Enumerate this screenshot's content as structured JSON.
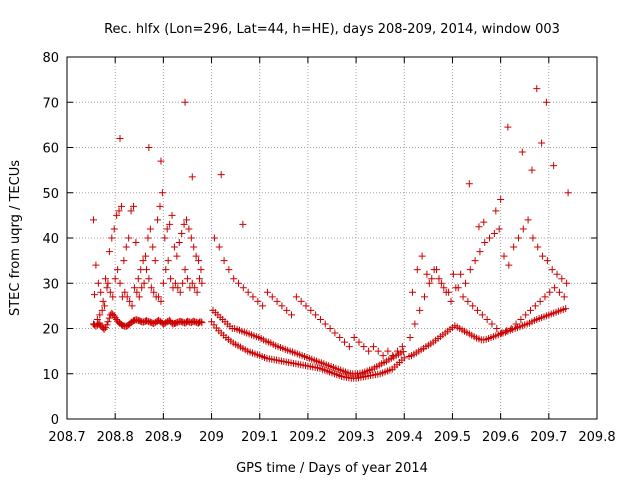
{
  "chart_data": {
    "type": "scatter",
    "title": "Rec. hlfx (Lon=296, Lat=44, h=HE), days 208-209, 2014, window 003",
    "xlabel": "GPS time / Days of year 2014",
    "ylabel": "STEC from uqrg / TECUs",
    "xlim": [
      208.7,
      209.8
    ],
    "ylim": [
      0,
      80
    ],
    "x_ticks": [
      208.7,
      208.8,
      208.9,
      209.0,
      209.1,
      209.2,
      209.3,
      209.4,
      209.5,
      209.6,
      209.7,
      209.8
    ],
    "x_tick_labels": [
      "208.7",
      "208.8",
      "208.9",
      "209",
      "209.1",
      "209.2",
      "209.3",
      "209.4",
      "209.5",
      "209.6",
      "209.7",
      "209.8"
    ],
    "y_ticks": [
      0,
      10,
      20,
      30,
      40,
      50,
      60,
      70,
      80
    ],
    "y_tick_labels": [
      "0",
      "10",
      "20",
      "30",
      "40",
      "50",
      "60",
      "70",
      "80"
    ],
    "grid": true,
    "marker": "+",
    "color": "#cc0000",
    "series": [
      {
        "name": "STEC",
        "x": [
          208.755,
          208.757,
          208.76,
          208.763,
          208.765,
          208.768,
          208.77,
          208.773,
          208.775,
          208.777,
          208.78,
          208.783,
          208.785,
          208.788,
          208.79,
          208.793,
          208.795,
          208.798,
          208.8,
          208.803,
          208.805,
          208.808,
          208.81,
          208.813,
          208.815,
          208.818,
          208.82,
          208.823,
          208.825,
          208.828,
          208.83,
          208.833,
          208.835,
          208.838,
          208.84,
          208.843,
          208.845,
          208.848,
          208.85,
          208.853,
          208.855,
          208.858,
          208.86,
          208.863,
          208.865,
          208.868,
          208.87,
          208.873,
          208.875,
          208.878,
          208.88,
          208.883,
          208.885,
          208.888,
          208.89,
          208.893,
          208.895,
          208.898,
          208.9,
          208.903,
          208.905,
          208.908,
          208.91,
          208.913,
          208.915,
          208.918,
          208.92,
          208.923,
          208.925,
          208.928,
          208.93,
          208.933,
          208.935,
          208.938,
          208.94,
          208.943,
          208.945,
          208.948,
          208.95,
          208.953,
          208.955,
          208.958,
          208.96,
          208.963,
          208.965,
          208.968,
          208.97,
          208.973,
          208.975,
          208.978,
          208.98,
          208.755,
          208.76,
          208.765,
          208.77,
          208.775,
          208.78,
          208.785,
          208.79,
          208.795,
          208.8,
          208.805,
          208.81,
          208.815,
          208.82,
          208.825,
          208.83,
          208.835,
          208.84,
          208.845,
          208.85,
          208.855,
          208.86,
          208.865,
          208.87,
          208.875,
          208.88,
          208.885,
          208.89,
          208.895,
          208.9,
          208.905,
          208.91,
          208.915,
          208.92,
          208.925,
          208.93,
          208.935,
          208.94,
          208.945,
          208.95,
          208.955,
          208.96,
          208.965,
          208.97,
          208.975,
          208.98,
          208.757,
          208.763,
          208.768,
          208.773,
          208.778,
          208.783,
          208.788,
          208.793,
          208.798,
          208.803,
          208.808,
          208.813,
          208.818,
          208.823,
          208.828,
          208.833,
          208.838,
          208.843,
          208.848,
          208.853,
          208.858,
          208.863,
          208.868,
          208.873,
          208.878,
          208.883,
          208.888,
          208.893,
          208.898,
          208.903,
          208.908,
          208.913,
          208.918,
          208.923,
          208.928,
          208.933,
          208.938,
          208.943,
          208.948,
          208.953,
          208.958,
          208.963,
          208.968,
          208.973,
          208.978,
          209.0,
          209.005,
          209.01,
          209.015,
          209.02,
          209.025,
          209.03,
          209.035,
          209.04,
          209.045,
          209.05,
          209.055,
          209.06,
          209.065,
          209.07,
          209.075,
          209.08,
          209.085,
          209.09,
          209.095,
          209.1,
          209.105,
          209.11,
          209.115,
          209.12,
          209.125,
          209.13,
          209.135,
          209.14,
          209.145,
          209.15,
          209.155,
          209.16,
          209.165,
          209.17,
          209.175,
          209.18,
          209.185,
          209.19,
          209.195,
          209.2,
          209.205,
          209.21,
          209.215,
          209.22,
          209.225,
          209.23,
          209.235,
          209.24,
          209.245,
          209.25,
          209.255,
          209.26,
          209.265,
          209.27,
          209.275,
          209.28,
          209.285,
          209.29,
          209.295,
          209.3,
          209.305,
          209.31,
          209.315,
          209.32,
          209.325,
          209.33,
          209.335,
          209.34,
          209.345,
          209.35,
          209.355,
          209.36,
          209.365,
          209.37,
          209.375,
          209.38,
          209.385,
          209.39,
          209.395,
          209.4,
          209.003,
          209.008,
          209.013,
          209.018,
          209.023,
          209.028,
          209.033,
          209.038,
          209.043,
          209.048,
          209.053,
          209.058,
          209.063,
          209.068,
          209.073,
          209.078,
          209.083,
          209.088,
          209.093,
          209.098,
          209.103,
          209.108,
          209.113,
          209.118,
          209.123,
          209.128,
          209.133,
          209.138,
          209.143,
          209.148,
          209.153,
          209.158,
          209.163,
          209.168,
          209.173,
          209.178,
          209.183,
          209.188,
          209.193,
          209.198,
          209.203,
          209.208,
          209.213,
          209.218,
          209.223,
          209.228,
          209.233,
          209.238,
          209.243,
          209.248,
          209.253,
          209.258,
          209.263,
          209.268,
          209.273,
          209.278,
          209.283,
          209.288,
          209.293,
          209.298,
          209.303,
          209.308,
          209.313,
          209.318,
          209.323,
          209.328,
          209.333,
          209.338,
          209.343,
          209.348,
          209.353,
          209.358,
          209.363,
          209.368,
          209.373,
          209.378,
          209.383,
          209.388,
          209.393,
          209.398,
          209.006,
          209.016,
          209.026,
          209.036,
          209.046,
          209.056,
          209.066,
          209.076,
          209.086,
          209.096,
          209.106,
          209.116,
          209.126,
          209.136,
          209.146,
          209.156,
          209.166,
          209.176,
          209.186,
          209.196,
          209.206,
          209.216,
          209.226,
          209.236,
          209.246,
          209.256,
          209.266,
          209.276,
          209.286,
          209.296,
          209.306,
          209.316,
          209.326,
          209.336,
          209.346,
          209.356,
          209.366,
          209.376,
          209.386,
          209.396,
          209.41,
          209.415,
          209.42,
          209.425,
          209.43,
          209.435,
          209.44,
          209.445,
          209.45,
          209.455,
          209.46,
          209.465,
          209.47,
          209.475,
          209.48,
          209.485,
          209.49,
          209.495,
          209.5,
          209.505,
          209.51,
          209.515,
          209.52,
          209.525,
          209.53,
          209.535,
          209.54,
          209.545,
          209.55,
          209.555,
          209.56,
          209.565,
          209.57,
          209.575,
          209.58,
          209.585,
          209.59,
          209.595,
          209.6,
          209.605,
          209.61,
          209.615,
          209.62,
          209.625,
          209.63,
          209.635,
          209.64,
          209.645,
          209.65,
          209.655,
          209.66,
          209.665,
          209.67,
          209.675,
          209.68,
          209.685,
          209.69,
          209.695,
          209.7,
          209.705,
          209.71,
          209.715,
          209.72,
          209.725,
          209.73,
          209.735,
          209.412,
          209.422,
          209.432,
          209.442,
          209.452,
          209.462,
          209.472,
          209.482,
          209.492,
          209.502,
          209.512,
          209.522,
          209.532,
          209.542,
          209.552,
          209.562,
          209.572,
          209.582,
          209.592,
          209.602,
          209.612,
          209.622,
          209.632,
          209.642,
          209.652,
          209.662,
          209.672,
          209.682,
          209.692,
          209.702,
          209.712,
          209.722,
          209.732,
          209.417,
          209.427,
          209.437,
          209.447,
          209.457,
          209.467,
          209.477,
          209.487,
          209.497,
          209.507,
          209.517,
          209.527,
          209.537,
          209.547,
          209.557,
          209.567,
          209.577,
          209.587,
          209.597,
          209.607,
          209.617,
          209.627,
          209.637,
          209.647,
          209.657,
          209.667,
          209.677,
          209.687,
          209.697,
          209.707,
          209.717,
          209.727,
          209.737,
          208.945,
          208.81,
          208.87,
          208.895,
          208.96,
          209.065,
          209.02,
          209.675,
          209.695,
          209.615,
          209.645,
          209.685,
          209.71,
          209.535,
          209.74,
          209.665,
          209.59,
          209.6,
          209.565,
          209.555
        ],
        "y": [
          21,
          20.8,
          20.5,
          20.8,
          21,
          21.2,
          20.6,
          20.3,
          20.1,
          19.8,
          20.2,
          20.8,
          21.5,
          22.3,
          23,
          23.4,
          23.1,
          22.8,
          22.4,
          22,
          21.6,
          21.3,
          21.1,
          20.9,
          20.7,
          20.6,
          20.5,
          20.5,
          20.6,
          20.8,
          21,
          21.3,
          21.5,
          21.7,
          21.8,
          21.9,
          21.9,
          21.8,
          21.7,
          21.6,
          21.5,
          21.4,
          21.5,
          21.6,
          21.7,
          21.6,
          21.5,
          21.4,
          21.3,
          21.2,
          21.1,
          21.3,
          21.5,
          21.6,
          21.8,
          21.6,
          21.4,
          21.2,
          21,
          21.1,
          21.3,
          21.5,
          21.6,
          21.8,
          21.5,
          21.2,
          21,
          21.1,
          21.2,
          21.3,
          21.4,
          21.5,
          21.6,
          21.5,
          21.4,
          21.3,
          21.2,
          21.4,
          21.6,
          21.5,
          21.4,
          21.3,
          21.5,
          21.6,
          21.5,
          21.4,
          21.3,
          21.2,
          21.4,
          21.5,
          21.3,
          44,
          34,
          30,
          28,
          26,
          31,
          30,
          28,
          27,
          31,
          33,
          30,
          27,
          28,
          27,
          26,
          25,
          29,
          28,
          27,
          29,
          30,
          33,
          31,
          29,
          28,
          27,
          27,
          26,
          30,
          33,
          35,
          31,
          29,
          30,
          29,
          28,
          30,
          33,
          31,
          29,
          30,
          29,
          28,
          31,
          30,
          27.5,
          22,
          23,
          24,
          25,
          29,
          37,
          40,
          42,
          45,
          46,
          47,
          35,
          38,
          40,
          46,
          47,
          39,
          31,
          33,
          35,
          36,
          40,
          42,
          38,
          35,
          44,
          47,
          50,
          40,
          42,
          43,
          45,
          38,
          36,
          39,
          41,
          43,
          44,
          42,
          40,
          38,
          36,
          35,
          33,
          21.5,
          20.8,
          20.1,
          19.5,
          19,
          18.5,
          18,
          17.6,
          17.2,
          16.8,
          16.5,
          16.2,
          15.9,
          15.6,
          15.3,
          15,
          14.8,
          14.6,
          14.4,
          14.2,
          14,
          13.8,
          13.6,
          13.4,
          13.3,
          13.2,
          13.1,
          13,
          12.9,
          12.8,
          12.7,
          12.6,
          12.5,
          12.4,
          12.3,
          12.2,
          12.1,
          12,
          11.9,
          11.8,
          11.7,
          11.6,
          11.5,
          11.4,
          11.3,
          11.2,
          11,
          10.8,
          10.6,
          10.4,
          10.2,
          10,
          9.8,
          9.6,
          9.4,
          9.3,
          9.2,
          9.1,
          9,
          9,
          9,
          9.1,
          9.2,
          9.3,
          9.4,
          9.5,
          9.6,
          9.7,
          9.8,
          9.9,
          10,
          10.2,
          10.4,
          10.6,
          10.8,
          11,
          11.5,
          12,
          12.5,
          13,
          13.5,
          24,
          23.5,
          23,
          22.5,
          22,
          21.5,
          21,
          20.5,
          20,
          20,
          19.8,
          19.6,
          19.4,
          19.2,
          19,
          18.8,
          18.6,
          18.4,
          18.2,
          18,
          17.8,
          17.5,
          17.2,
          17,
          16.8,
          16.5,
          16.2,
          16,
          15.8,
          15.6,
          15.4,
          15.2,
          15,
          14.8,
          14.6,
          14.4,
          14.2,
          14,
          13.8,
          13.6,
          13.4,
          13.2,
          13,
          12.8,
          12.6,
          12.4,
          12.2,
          12,
          11.8,
          11.6,
          11.4,
          11.2,
          11,
          10.8,
          10.6,
          10.4,
          10.2,
          10.1,
          10,
          10,
          10,
          10.1,
          10.2,
          10.4,
          10.6,
          10.8,
          11,
          11.3,
          11.6,
          11.9,
          12.2,
          12.5,
          12.8,
          13.1,
          13.4,
          13.7,
          14,
          14.3,
          14.6,
          14.9,
          40,
          38,
          35,
          33,
          31,
          30,
          29,
          28,
          27,
          26,
          25,
          28,
          27,
          26,
          25,
          24,
          23,
          27,
          26,
          25,
          24,
          23,
          22,
          21,
          20,
          19,
          18,
          17,
          16,
          18,
          17,
          16,
          15,
          16,
          15,
          14,
          15,
          14,
          15,
          16,
          13.8,
          14,
          14.3,
          14.6,
          15,
          15.3,
          15.6,
          16,
          16.3,
          16.6,
          17,
          17.4,
          17.8,
          18.2,
          18.6,
          19,
          19.4,
          19.8,
          20.2,
          20.6,
          20.3,
          20,
          19.7,
          19.4,
          19.1,
          18.8,
          18.5,
          18.2,
          17.9,
          17.7,
          17.5,
          17.5,
          17.6,
          17.8,
          18,
          18.2,
          18.4,
          18.6,
          18.8,
          19,
          19.2,
          19.4,
          19.6,
          19.8,
          20,
          20.2,
          20.4,
          20.6,
          20.8,
          21,
          21.2,
          21.5,
          21.8,
          22,
          22.2,
          22.4,
          22.6,
          22.8,
          23,
          23.2,
          23.4,
          23.6,
          23.8,
          24,
          24.2,
          24.4,
          18,
          21,
          24,
          27,
          30,
          33,
          31,
          29,
          28,
          32,
          29,
          27,
          26,
          25,
          24,
          23,
          22,
          21,
          20,
          19,
          19.5,
          20,
          21,
          22,
          23,
          24,
          25,
          26,
          27,
          28,
          29,
          28,
          27,
          28,
          33,
          36,
          32,
          31,
          33,
          30,
          28,
          26,
          29,
          32,
          30,
          33,
          35,
          37,
          39,
          40,
          41,
          42,
          36,
          34,
          38,
          40,
          42,
          44,
          40,
          38,
          36,
          35,
          33,
          32,
          31,
          30,
          70,
          62,
          60,
          57,
          53.5,
          43,
          54,
          73,
          70,
          64.5,
          59,
          61,
          56,
          52,
          50,
          55,
          46,
          48.5,
          43.5,
          42.5
        ]
      }
    ]
  }
}
